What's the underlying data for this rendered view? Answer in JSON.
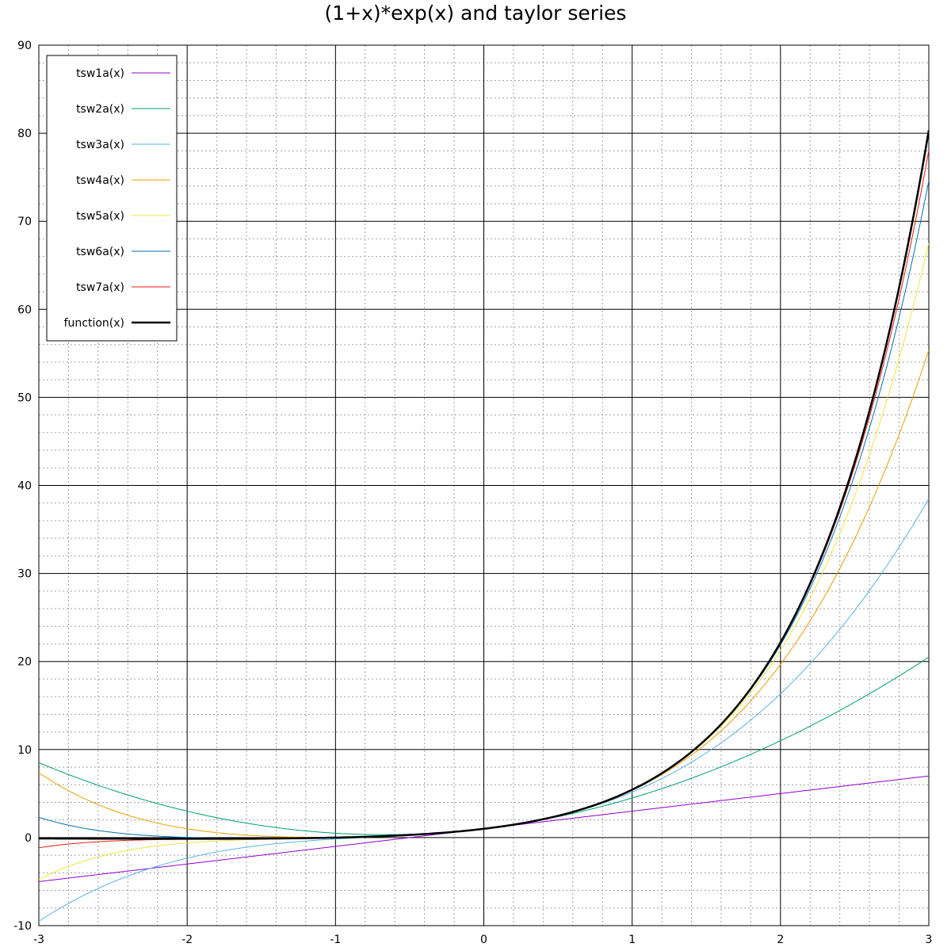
{
  "chart_data": {
    "type": "line",
    "title": "(1+x)*exp(x) and taylor series",
    "xlabel": "",
    "ylabel": "",
    "xlim": [
      -3,
      3
    ],
    "ylim": [
      -10,
      90
    ],
    "x_ticks": [
      -3,
      -2,
      -1,
      0,
      1,
      2,
      3
    ],
    "y_ticks": [
      -10,
      0,
      10,
      20,
      30,
      40,
      50,
      60,
      70,
      80,
      90
    ],
    "grid": true,
    "minor_grid": true,
    "legend_position": "top-left",
    "series": [
      {
        "name": "tsw1a(x)",
        "color": "#9400d3",
        "order": 1,
        "width": 1
      },
      {
        "name": "tsw2a(x)",
        "color": "#009e73",
        "order": 2,
        "width": 1
      },
      {
        "name": "tsw3a(x)",
        "color": "#56b4e9",
        "order": 3,
        "width": 1
      },
      {
        "name": "tsw4a(x)",
        "color": "#e69f00",
        "order": 4,
        "width": 1
      },
      {
        "name": "tsw5a(x)",
        "color": "#f0e442",
        "order": 5,
        "width": 1
      },
      {
        "name": "tsw6a(x)",
        "color": "#0072b2",
        "order": 6,
        "width": 1
      },
      {
        "name": "tsw7a(x)",
        "color": "#e51e10",
        "order": 7,
        "width": 1
      },
      {
        "name": "function(x)",
        "color": "#000000",
        "order": null,
        "width": 2.5
      }
    ],
    "sample_points": {
      "x": [
        -3,
        -2,
        -1,
        0,
        1,
        2,
        3
      ],
      "function(x)": [
        -0.0996,
        -0.1353,
        0,
        1,
        5.4366,
        22.167,
        80.342
      ],
      "tsw1a(x)": [
        -2,
        -1,
        0,
        1,
        2,
        3,
        4
      ],
      "tsw2a(x)": [
        4,
        1,
        0,
        1,
        4,
        9,
        16
      ],
      "tsw3a(x)": [
        -5,
        -0.333,
        0,
        1,
        5.333,
        14.33,
        34
      ],
      "tsw4a(x)": [
        4,
        0.333,
        0,
        1,
        5.417,
        19,
        52
      ]
    }
  }
}
